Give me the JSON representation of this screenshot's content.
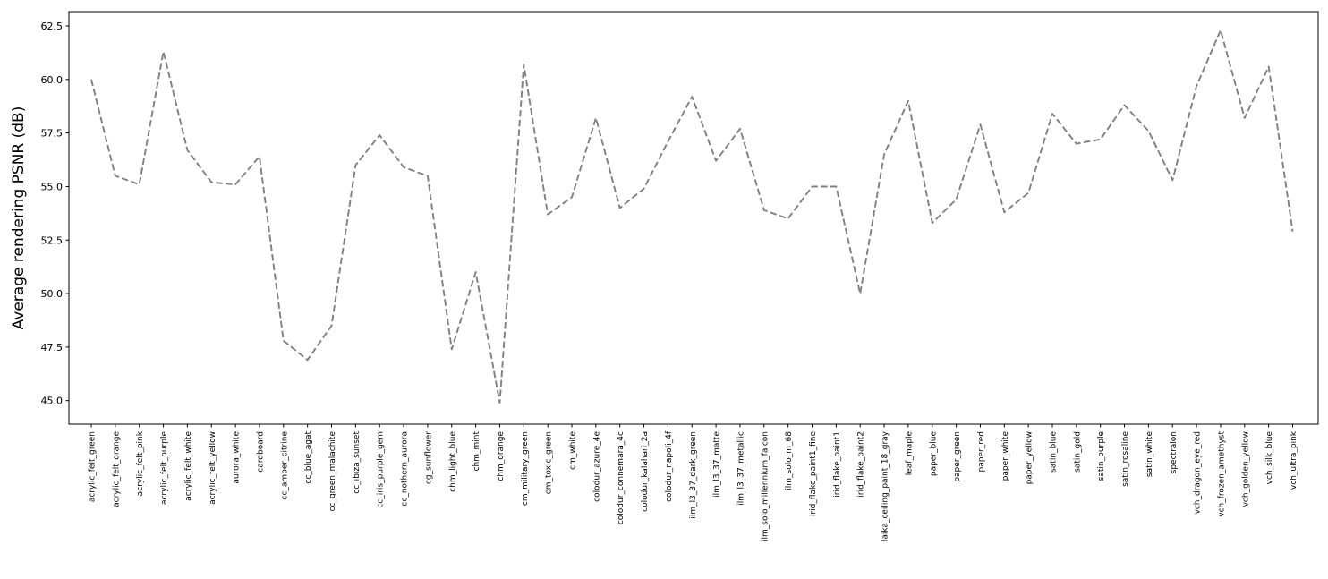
{
  "chart_data": {
    "type": "line",
    "title": "",
    "xlabel": "",
    "ylabel": "Average rendering PSNR (dB)",
    "categories": [
      "acrylic_felt_green",
      "acrylic_felt_orange",
      "acrylic_felt_pink",
      "acrylic_felt_purple",
      "acrylic_felt_white",
      "acrylic_felt_yellow",
      "aurora_white",
      "cardboard",
      "cc_amber_citrine",
      "cc_blue_agat",
      "cc_green_malachite",
      "cc_ibiza_sunset",
      "cc_iris_purple_gem",
      "cc_nothern_aurora",
      "cg_sunflower",
      "chm_light_blue",
      "chm_mint",
      "chm_orange",
      "cm_military_green",
      "cm_toxic_green",
      "cm_white",
      "colodur_azure_4e",
      "colodur_connemara_4c",
      "colodur_kalahari_2a",
      "colodur_napoli_4f",
      "ilm_l3_37_dark_green",
      "ilm_l3_37_matte",
      "ilm_l3_37_metallic",
      "ilm_solo_millennium_falcon",
      "ilm_solo_m_68",
      "irid_flake_paint1_fine",
      "irid_flake_paint1",
      "irid_flake_paint2",
      "laika_ceiling_paint_18_gray",
      "leaf_maple",
      "paper_blue",
      "paper_green",
      "paper_red",
      "paper_white",
      "paper_yellow",
      "satin_blue",
      "satin_gold",
      "satin_purple",
      "satin_rosaline",
      "satin_white",
      "spectralon",
      "vch_dragon_eye_red",
      "vch_frozen_amethyst",
      "vch_golden_yellow",
      "vch_silk_blue",
      "vch_ultra_pink"
    ],
    "values": [
      60.0,
      55.5,
      55.1,
      61.3,
      56.7,
      55.2,
      55.1,
      56.4,
      47.8,
      46.9,
      48.5,
      56.0,
      57.4,
      55.9,
      55.5,
      47.4,
      51.0,
      44.9,
      60.7,
      53.7,
      54.5,
      58.2,
      54.0,
      54.9,
      57.1,
      59.2,
      56.2,
      57.7,
      53.9,
      53.5,
      55.0,
      55.0,
      50.0,
      56.5,
      59.0,
      53.3,
      54.4,
      57.9,
      53.8,
      54.7,
      58.4,
      57.0,
      57.2,
      58.8,
      57.6,
      55.3,
      59.7,
      62.3,
      58.2,
      60.6,
      52.9
    ],
    "yticks": [
      45.0,
      47.5,
      50.0,
      52.5,
      55.0,
      57.5,
      60.0,
      62.5
    ],
    "ytick_labels": [
      "45.0",
      "47.5",
      "50.0",
      "52.5",
      "55.0",
      "57.5",
      "60.0",
      "62.5"
    ],
    "ylim": [
      43.9,
      63.17
    ],
    "grid": false,
    "legend_position": "none",
    "line_color": "#808080",
    "line_style": "dashed",
    "spine_color": "#000000",
    "background_color": "#ffffff",
    "x_tick_label_rotation_deg": 90
  }
}
